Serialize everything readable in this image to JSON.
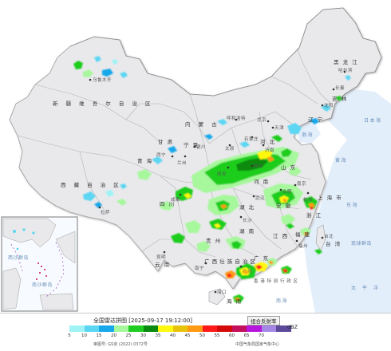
{
  "legend": {
    "title": "全国雷达拼图 [2025-09-17 19:12:00]",
    "product": "组合反射率",
    "unit": "dBZ",
    "review_no": "审图号: GS京 (2022) 0372号",
    "producer": "中国气象局国家气象中心",
    "ticks": [
      "5",
      "10",
      "15",
      "20",
      "25",
      "30",
      "35",
      "40",
      "45",
      "50",
      "55",
      "60",
      "65",
      "70"
    ],
    "colors": [
      "#9ff3f5",
      "#5bd6f2",
      "#16a8eb",
      "#a7f79c",
      "#1ecd1f",
      "#088b10",
      "#fff80f",
      "#e8c30c",
      "#ff9a12",
      "#ff1a1a",
      "#d40a0a",
      "#c3105d",
      "#b616dd",
      "#a588e6",
      "#5d4a9a"
    ]
  },
  "regions": {
    "xinjiang": "新 疆 维 吾 尔 自 治 区",
    "xizang": "西 藏 自 治 区",
    "qinghai": "青 海",
    "neimenggu": "内 蒙 古",
    "heilongjiang": "黑 龙 江",
    "jilin": "吉 林",
    "gansu": "甘 肃",
    "ningxia": "宁 夏",
    "sichuan": "四 川",
    "hubei": "湖 北",
    "hunan": "湖 南",
    "guangxi": "广 西 壮 族 自 治 区",
    "guangdong": "广 东",
    "yunnan": "云 南",
    "guizhou": "贵 州",
    "jiangxi": "江 西",
    "fujian": "福 建",
    "zhejiang": "浙 江",
    "shanghai": "上 海 市",
    "anhui": "安 徽",
    "henan": "河 南",
    "shandong": "山 东",
    "hebei": "河 北",
    "liaoning": "辽 宁",
    "taiwan": "台 湾",
    "hainan": "海 南",
    "hk": "香 港 特 别 行 政 区"
  },
  "cities": {
    "wulumuqi": "乌鲁木齐",
    "haerbin": "哈尔滨",
    "changchun": "长春",
    "shenyang": "沈阳",
    "beijing": "北京",
    "tianjin": "天津",
    "huhehaote": "呼和浩特",
    "yinchuan": "银川",
    "xining": "西宁",
    "lanzhou": "兰州",
    "xian": "西安",
    "lasa": "拉萨",
    "chengdu": "成都",
    "kunming": "昆明",
    "nanning": "南宁",
    "guangzhou": "广州",
    "fuzhou": "福州",
    "hangzhou": "杭州",
    "nanjing": "南京",
    "hefei": "合肥",
    "wuhan": "武汉",
    "changsha": "长沙",
    "zhengzhou": "郑州",
    "jinan": "济南",
    "shijiazhuang": "石家庄",
    "taiyuan": "太原",
    "taibei": "台北",
    "haikou": "海口"
  },
  "seas": {
    "bohai": "渤海",
    "huanghai": "黄海",
    "donghai": "东海",
    "taipingyang": "太 平 洋",
    "nanhai": "南海",
    "riben": "日本海",
    "liuqiu": "琉球群岛",
    "nansha": "南沙群岛",
    "xisha": "西沙群岛"
  }
}
